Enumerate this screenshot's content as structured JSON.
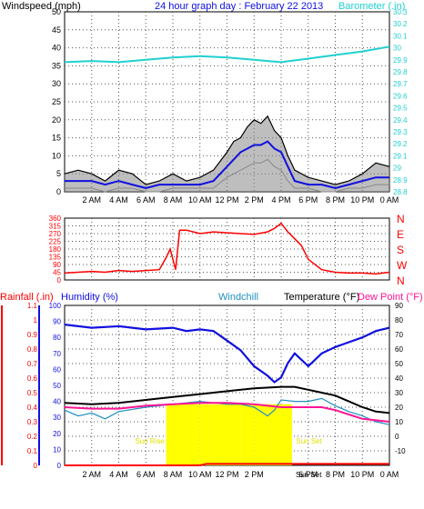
{
  "colors": {
    "panel_bg": "#ffffff",
    "grid": "#555555",
    "windspeed": "#000000",
    "windspeed_avg": "#1010e0",
    "windspeed_gust": "#888888",
    "barometer": "#20d0d0",
    "direction": "#ff0000",
    "rainfall": "#ff0000",
    "humidity": "#1010e0",
    "windchill": "#2090c0",
    "temperature": "#000000",
    "dewpoint": "#ff1493",
    "sunshine": "#ffff00",
    "title": "#1010e0",
    "sun_label": "#e0e000"
  },
  "chart_data": [
    {
      "type": "line",
      "title": "24 hour graph day : February 22 2013",
      "ylabel_left": "Windspeed (mph)",
      "ylabel_right": "Barometer (.in)",
      "x_ticks": [
        "2 AM",
        "4 AM",
        "6 AM",
        "8 AM",
        "10 AM",
        "12 PM",
        "2 PM",
        "4 PM",
        "6 PM",
        "8 PM",
        "10 PM",
        "0 AM"
      ],
      "x_range_hours": [
        0,
        24
      ],
      "ylim_left": [
        0,
        50
      ],
      "y_ticks_left": [
        "0",
        "5",
        "10",
        "15",
        "20",
        "25",
        "30",
        "35",
        "40",
        "45",
        "50"
      ],
      "ylim_right": [
        28.8,
        30.3
      ],
      "y_ticks_right": [
        "28.8",
        "28.9",
        "29",
        "29.1",
        "29.2",
        "29.3",
        "29.4",
        "29.5",
        "29.6",
        "29.7",
        "29.8",
        "29.9",
        "30",
        "30.1",
        "30.2",
        "30.3"
      ],
      "grid": true,
      "series": [
        {
          "key": "gust",
          "hours": [
            0,
            1,
            2,
            3,
            4,
            5,
            6,
            7,
            8,
            9,
            10,
            11,
            12,
            12.5,
            13,
            13.5,
            14,
            14.5,
            15,
            15.5,
            16,
            16.5,
            17,
            18,
            19,
            20,
            21,
            22,
            23,
            24
          ],
          "values": [
            5,
            6,
            5,
            3,
            6,
            5,
            2,
            3,
            5,
            3,
            4,
            6,
            11,
            14,
            15,
            18,
            20,
            19,
            21,
            17,
            15,
            10,
            6,
            4,
            3,
            2,
            3,
            5,
            8,
            7
          ]
        },
        {
          "key": "average",
          "hours": [
            0,
            1,
            2,
            3,
            4,
            5,
            6,
            7,
            8,
            9,
            10,
            11,
            12,
            12.5,
            13,
            13.5,
            14,
            14.5,
            15,
            15.5,
            16,
            16.5,
            17,
            18,
            19,
            20,
            21,
            22,
            23,
            24
          ],
          "values": [
            3,
            3,
            3,
            2,
            3,
            2,
            1,
            2,
            2,
            2,
            2,
            3,
            7,
            9,
            11,
            12,
            13,
            13,
            14,
            12,
            11,
            7,
            3,
            2,
            2,
            1,
            2,
            3,
            4,
            4
          ]
        },
        {
          "key": "min",
          "hours": [
            0,
            1,
            2,
            3,
            4,
            5,
            6,
            7,
            8,
            9,
            10,
            11,
            12,
            12.5,
            13,
            13.5,
            14,
            14.5,
            15,
            15.5,
            16,
            16.5,
            17,
            18,
            19,
            20,
            21,
            22,
            23,
            24
          ],
          "values": [
            1,
            1,
            1,
            0,
            1,
            1,
            0,
            0,
            1,
            1,
            1,
            1,
            4,
            5,
            6,
            7,
            8,
            8,
            9,
            7,
            6,
            3,
            1,
            1,
            0,
            0,
            1,
            1,
            2,
            2
          ]
        },
        {
          "key": "barometer",
          "hours": [
            0,
            2,
            4,
            6,
            8,
            10,
            12,
            14,
            15,
            16,
            18,
            20,
            22,
            24
          ],
          "values": [
            29.88,
            29.89,
            29.88,
            29.9,
            29.92,
            29.93,
            29.92,
            29.9,
            29.89,
            29.88,
            29.91,
            29.94,
            29.97,
            30.01
          ]
        }
      ]
    },
    {
      "type": "line",
      "ylabel_right": [
        "N",
        "W",
        "S",
        "E",
        "N"
      ],
      "ylim_left": [
        0,
        360
      ],
      "y_ticks_left": [
        "0",
        "45",
        "90",
        "135",
        "180",
        "225",
        "270",
        "315",
        "360"
      ],
      "x_range_hours": [
        0,
        24
      ],
      "grid": true,
      "series": [
        {
          "key": "direction",
          "hours": [
            0,
            1,
            2,
            3,
            4,
            5,
            6,
            7,
            7.5,
            7.8,
            8,
            8.2,
            8.5,
            9,
            10,
            11,
            12,
            13,
            14,
            15,
            15.5,
            16,
            16.5,
            17,
            17.5,
            18,
            19,
            20,
            21,
            22,
            23,
            24
          ],
          "values": [
            40,
            45,
            50,
            45,
            55,
            50,
            55,
            60,
            130,
            180,
            120,
            60,
            290,
            290,
            270,
            280,
            275,
            270,
            265,
            280,
            300,
            330,
            280,
            240,
            200,
            120,
            60,
            45,
            40,
            40,
            35,
            45
          ]
        }
      ]
    },
    {
      "type": "line",
      "legend": [
        "Rainfall (.in)",
        "Humidity (%)",
        "Windchill",
        "Temperature (°F)",
        "Dew Point (°F)"
      ],
      "y_ticks_rain": [
        "0",
        "0.1",
        "0.2",
        "0.3",
        "0.4",
        "0.5",
        "0.6",
        "0.7",
        "0.8",
        "0.9",
        "1",
        "1.1"
      ],
      "ylim_rain": [
        0,
        1.1
      ],
      "y_ticks_humidity": [
        "0",
        "10",
        "20",
        "30",
        "40",
        "50",
        "60",
        "70",
        "80",
        "90",
        "100"
      ],
      "ylim_humidity": [
        0,
        100
      ],
      "y_ticks_temp": [
        "-10",
        "0",
        "10",
        "20",
        "30",
        "40",
        "50",
        "60",
        "70",
        "80",
        "90"
      ],
      "ylim_temp": [
        -20,
        90
      ],
      "x_range_hours": [
        0,
        24
      ],
      "sun_labels": [
        "Sun Rise",
        "Sun Set"
      ],
      "grid": true,
      "series": [
        {
          "key": "humidity",
          "hours": [
            0,
            2,
            4,
            6,
            8,
            9,
            10,
            11,
            12,
            13,
            14,
            15,
            15.5,
            16,
            16.5,
            17,
            18,
            19,
            20,
            21,
            22,
            23,
            24
          ],
          "values": [
            88,
            86,
            87,
            85,
            86,
            84,
            85,
            84,
            78,
            72,
            62,
            56,
            52,
            55,
            64,
            70,
            62,
            70,
            74,
            77,
            80,
            84,
            86
          ]
        },
        {
          "key": "temperature",
          "hours": [
            0,
            2,
            4,
            6,
            8,
            10,
            12,
            14,
            16,
            17,
            18,
            19,
            20,
            21,
            22,
            23,
            24
          ],
          "values": [
            23,
            22,
            23,
            25,
            27,
            29,
            31,
            33,
            34,
            34,
            32,
            30,
            28,
            24,
            20,
            17,
            16
          ]
        },
        {
          "key": "windchill",
          "hours": [
            0,
            1,
            2,
            3,
            4,
            6,
            8,
            10,
            12,
            13,
            14,
            15,
            15.5,
            16,
            17,
            18,
            19,
            20,
            21,
            22,
            23,
            24
          ],
          "values": [
            18,
            14,
            16,
            12,
            17,
            20,
            22,
            24,
            22,
            22,
            20,
            14,
            18,
            25,
            24,
            24,
            26,
            21,
            17,
            14,
            10,
            8
          ]
        },
        {
          "key": "dewpoint",
          "hours": [
            0,
            2,
            4,
            6,
            8,
            10,
            12,
            14,
            16,
            17,
            18,
            19,
            20,
            21,
            22,
            23,
            24
          ],
          "values": [
            20,
            19,
            19,
            21,
            22,
            23,
            23,
            22,
            20,
            20,
            20,
            20,
            18,
            15,
            12,
            11,
            10
          ]
        },
        {
          "key": "rainfall",
          "hours": [
            0,
            10,
            10.5,
            24
          ],
          "values": [
            0,
            0,
            0.01,
            0.01
          ]
        },
        {
          "key": "sunshine",
          "hours": [
            7.5,
            8,
            9,
            10,
            11,
            12,
            13,
            14,
            15,
            16,
            16.8
          ],
          "values": [
            1,
            1,
            1,
            1,
            1,
            1,
            1,
            1,
            1,
            1,
            1
          ]
        }
      ]
    }
  ]
}
